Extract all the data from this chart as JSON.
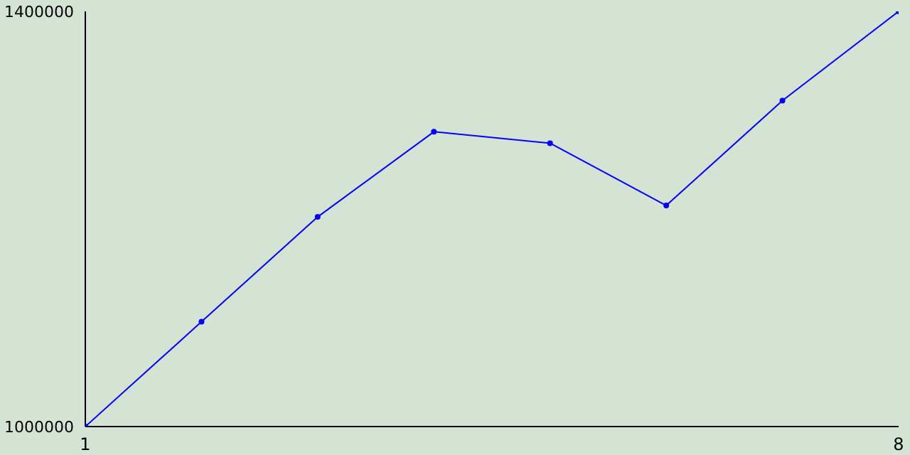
{
  "chart_data": {
    "type": "line",
    "x": [
      1,
      2,
      3,
      4,
      5,
      6,
      7,
      8
    ],
    "series": [
      {
        "color": "#0000ff",
        "values": [
          1000000,
          1101000,
          1202000,
          1284000,
          1273000,
          1213000,
          1314000,
          1400000
        ]
      }
    ],
    "xlim": [
      1,
      8
    ],
    "xticks": [
      1,
      8
    ],
    "ylim": [
      1000000,
      1400000
    ],
    "yticks": [
      1000000,
      1400000
    ],
    "grid": false,
    "marker": "circle",
    "line_style": "solid"
  }
}
